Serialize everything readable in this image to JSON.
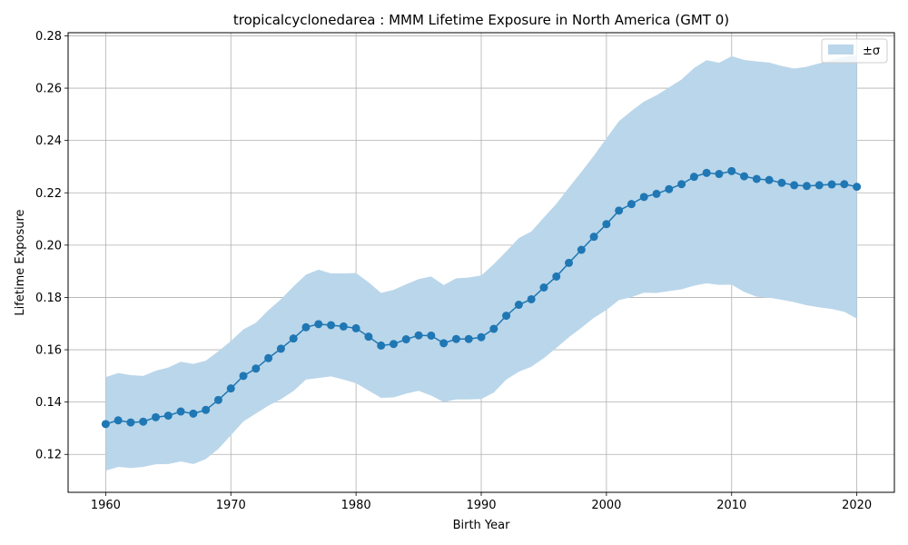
{
  "chart_data": {
    "type": "line",
    "title": "tropicalcyclonedarea : MMM Lifetime Exposure in North America (GMT 0)",
    "xlabel": "Birth Year",
    "ylabel": "Lifetime Exposure",
    "xlim": [
      1957,
      2023
    ],
    "ylim": [
      0.1055,
      0.2812
    ],
    "xticks": [
      1960,
      1970,
      1980,
      1990,
      2000,
      2010,
      2020
    ],
    "yticks": [
      0.12,
      0.14,
      0.16,
      0.18,
      0.2,
      0.22,
      0.24,
      0.26,
      0.28
    ],
    "ytick_labels": [
      "0.12",
      "0.14",
      "0.16",
      "0.18",
      "0.20",
      "0.22",
      "0.24",
      "0.26",
      "0.28"
    ],
    "grid": true,
    "legend_position": "top-right",
    "legend": [
      {
        "label": "±σ",
        "kind": "band"
      }
    ],
    "colors": {
      "line": "#1f77b4",
      "band": "#bad6ea",
      "grid": "#b0b0b0"
    },
    "x": [
      1960,
      1961,
      1962,
      1963,
      1964,
      1965,
      1966,
      1967,
      1968,
      1969,
      1970,
      1971,
      1972,
      1973,
      1974,
      1975,
      1976,
      1977,
      1978,
      1979,
      1980,
      1981,
      1982,
      1983,
      1984,
      1985,
      1986,
      1987,
      1988,
      1989,
      1990,
      1991,
      1992,
      1993,
      1994,
      1995,
      1996,
      1997,
      1998,
      1999,
      2000,
      2001,
      2002,
      2003,
      2004,
      2005,
      2006,
      2007,
      2008,
      2009,
      2010,
      2011,
      2012,
      2013,
      2014,
      2015,
      2016,
      2017,
      2018,
      2019,
      2020
    ],
    "series": [
      {
        "values": [
          0.1316,
          0.133,
          0.1322,
          0.1325,
          0.1342,
          0.1348,
          0.1364,
          0.1356,
          0.137,
          0.1408,
          0.1452,
          0.15,
          0.1528,
          0.1568,
          0.1604,
          0.1643,
          0.1686,
          0.1698,
          0.1694,
          0.1689,
          0.1682,
          0.165,
          0.1616,
          0.1622,
          0.164,
          0.1655,
          0.1654,
          0.1625,
          0.1641,
          0.1641,
          0.1648,
          0.168,
          0.173,
          0.1772,
          0.1793,
          0.1838,
          0.188,
          0.1932,
          0.1982,
          0.2032,
          0.208,
          0.2132,
          0.2157,
          0.2184,
          0.2196,
          0.2214,
          0.2233,
          0.2261,
          0.2276,
          0.2272,
          0.2283,
          0.2263,
          0.2253,
          0.2249,
          0.2238,
          0.2229,
          0.2226,
          0.2229,
          0.2232,
          0.2233,
          0.2223
        ],
        "lower": [
          0.1138,
          0.1152,
          0.1148,
          0.1152,
          0.1162,
          0.1163,
          0.1173,
          0.1163,
          0.1182,
          0.1221,
          0.1273,
          0.1326,
          0.1356,
          0.1386,
          0.1411,
          0.1442,
          0.1486,
          0.1492,
          0.1498,
          0.1486,
          0.1472,
          0.1444,
          0.1416,
          0.1418,
          0.1432,
          0.1443,
          0.1425,
          0.14,
          0.141,
          0.141,
          0.1412,
          0.1436,
          0.1486,
          0.1516,
          0.1535,
          0.1568,
          0.1607,
          0.1648,
          0.1684,
          0.1722,
          0.1752,
          0.179,
          0.1801,
          0.1818,
          0.1817,
          0.1824,
          0.1831,
          0.1845,
          0.1854,
          0.1848,
          0.1849,
          0.1821,
          0.1803,
          0.1799,
          0.1791,
          0.1782,
          0.177,
          0.1762,
          0.1756,
          0.1745,
          0.1719
        ],
        "upper": [
          0.1495,
          0.1511,
          0.1503,
          0.15,
          0.152,
          0.1532,
          0.1554,
          0.1546,
          0.1558,
          0.1594,
          0.1633,
          0.1678,
          0.1703,
          0.1751,
          0.1793,
          0.1842,
          0.1887,
          0.1906,
          0.1892,
          0.1892,
          0.1893,
          0.1858,
          0.1817,
          0.1829,
          0.185,
          0.187,
          0.188,
          0.1847,
          0.1873,
          0.1876,
          0.1884,
          0.1927,
          0.1976,
          0.2027,
          0.2052,
          0.2106,
          0.2158,
          0.222,
          0.228,
          0.2342,
          0.2408,
          0.2474,
          0.2513,
          0.2549,
          0.2573,
          0.2603,
          0.2633,
          0.2677,
          0.2707,
          0.2697,
          0.2722,
          0.2708,
          0.2702,
          0.2698,
          0.2685,
          0.2675,
          0.2682,
          0.2695,
          0.2708,
          0.272,
          0.2727
        ]
      }
    ]
  }
}
